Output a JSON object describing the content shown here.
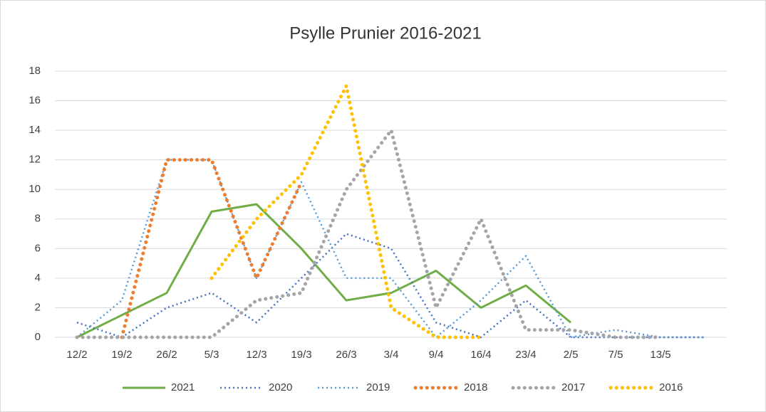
{
  "chart_data": {
    "type": "line",
    "title": "Psylle Prunier 2016-2021",
    "categories": [
      "12/2",
      "19/2",
      "26/2",
      "5/3",
      "12/3",
      "19/3",
      "26/3",
      "3/4",
      "9/4",
      "16/4",
      "23/4",
      "2/5",
      "7/5",
      "13/5",
      null
    ],
    "ylim": [
      0,
      18
    ],
    "yticks": [
      0,
      2,
      4,
      6,
      8,
      10,
      12,
      14,
      16,
      18
    ],
    "grid": true,
    "legend": "bottom",
    "series": [
      {
        "name": "2021",
        "color": "#70ad47",
        "style": "solid",
        "values": [
          0,
          1.5,
          3,
          8.5,
          9,
          6,
          2.5,
          3,
          4.5,
          2,
          3.5,
          1,
          null,
          null,
          null
        ]
      },
      {
        "name": "2020",
        "color": "#4472c4",
        "style": "dotted",
        "values": [
          1,
          0,
          2,
          3,
          1,
          4,
          7,
          6,
          1,
          0,
          2.5,
          0,
          0,
          0,
          0
        ]
      },
      {
        "name": "2019",
        "color": "#5b9bd5",
        "style": "dotted",
        "values": [
          0,
          2.5,
          12,
          12,
          4,
          10.5,
          4,
          4,
          0,
          2.5,
          5.5,
          0,
          0.5,
          0,
          0
        ]
      },
      {
        "name": "2018",
        "color": "#ed7d31",
        "style": "round-dot",
        "values": [
          null,
          0,
          12,
          12,
          4,
          10.5,
          null,
          null,
          null,
          null,
          null,
          null,
          null,
          null,
          null
        ]
      },
      {
        "name": "2017",
        "color": "#a5a5a5",
        "style": "round-dot",
        "values": [
          0,
          0,
          0,
          0,
          2.5,
          3,
          10,
          14,
          2,
          8,
          0.5,
          0.5,
          0,
          0,
          null
        ]
      },
      {
        "name": "2016",
        "color": "#ffc000",
        "style": "round-dot",
        "values": [
          null,
          null,
          null,
          4,
          8,
          11,
          17,
          2,
          0,
          0,
          null,
          null,
          null,
          null,
          null
        ]
      }
    ]
  }
}
